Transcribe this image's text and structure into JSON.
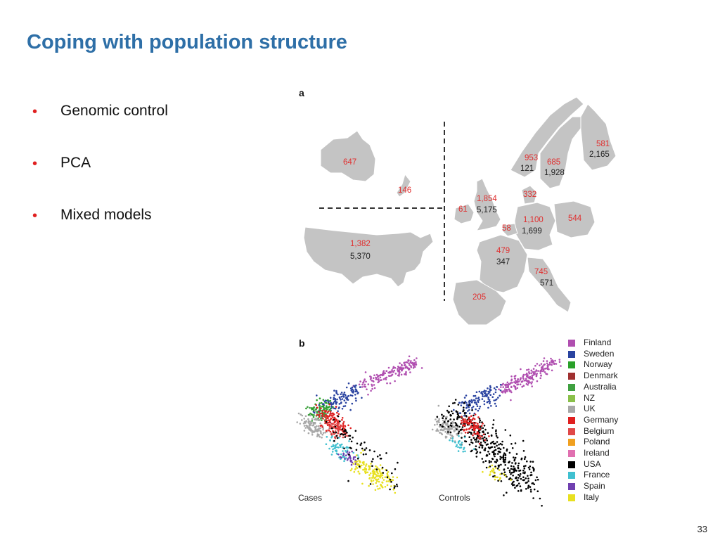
{
  "slide": {
    "title": "Coping with population structure",
    "bullets": [
      "Genomic control",
      "PCA",
      "Mixed models"
    ],
    "page_number": "33"
  },
  "figure": {
    "panel_a_label": "a",
    "panel_b_label": "b",
    "map_counts": [
      {
        "region": "Australia",
        "cases": "647",
        "controls": ""
      },
      {
        "region": "New Zealand",
        "cases": "146",
        "controls": ""
      },
      {
        "region": "USA",
        "cases": "1,382",
        "controls": "5,370"
      },
      {
        "region": "UK",
        "cases": "1,854",
        "controls": "5,175"
      },
      {
        "region": "Ireland",
        "cases": "61",
        "controls": ""
      },
      {
        "region": "Norway",
        "cases": "953",
        "controls": "121"
      },
      {
        "region": "Sweden",
        "cases": "685",
        "controls": "1,928"
      },
      {
        "region": "Finland",
        "cases": "581",
        "controls": "2,165"
      },
      {
        "region": "Denmark",
        "cases": "332",
        "controls": ""
      },
      {
        "region": "Germany",
        "cases": "1,100",
        "controls": "1,699"
      },
      {
        "region": "Belgium",
        "cases": "544",
        "controls": ""
      },
      {
        "region": "Poland",
        "cases": "58",
        "controls": ""
      },
      {
        "region": "France",
        "cases": "479",
        "controls": "347"
      },
      {
        "region": "Italy",
        "cases": "745",
        "controls": "571"
      },
      {
        "region": "Spain",
        "cases": "205",
        "controls": ""
      }
    ],
    "scatter_labels": {
      "cases": "Cases",
      "controls": "Controls"
    },
    "legend": [
      {
        "label": "Finland",
        "color": "#b04fb0"
      },
      {
        "label": "Sweden",
        "color": "#2a43a0"
      },
      {
        "label": "Norway",
        "color": "#2aa02a"
      },
      {
        "label": "Denmark",
        "color": "#a03030"
      },
      {
        "label": "Australia",
        "color": "#3fa040"
      },
      {
        "label": "NZ",
        "color": "#8ac04a"
      },
      {
        "label": "UK",
        "color": "#a8a8a8"
      },
      {
        "label": "Germany",
        "color": "#e02020"
      },
      {
        "label": "Belgium",
        "color": "#e04848"
      },
      {
        "label": "Poland",
        "color": "#f0a020"
      },
      {
        "label": "Ireland",
        "color": "#e070b0"
      },
      {
        "label": "USA",
        "color": "#000000"
      },
      {
        "label": "France",
        "color": "#40c0d0"
      },
      {
        "label": "Spain",
        "color": "#7040b0"
      },
      {
        "label": "Italy",
        "color": "#e8e020"
      }
    ],
    "colors": {
      "map_land": "#c4c4c4",
      "map_border": "#ffffff",
      "case_count": "#e03030",
      "control_count": "#222222"
    }
  }
}
